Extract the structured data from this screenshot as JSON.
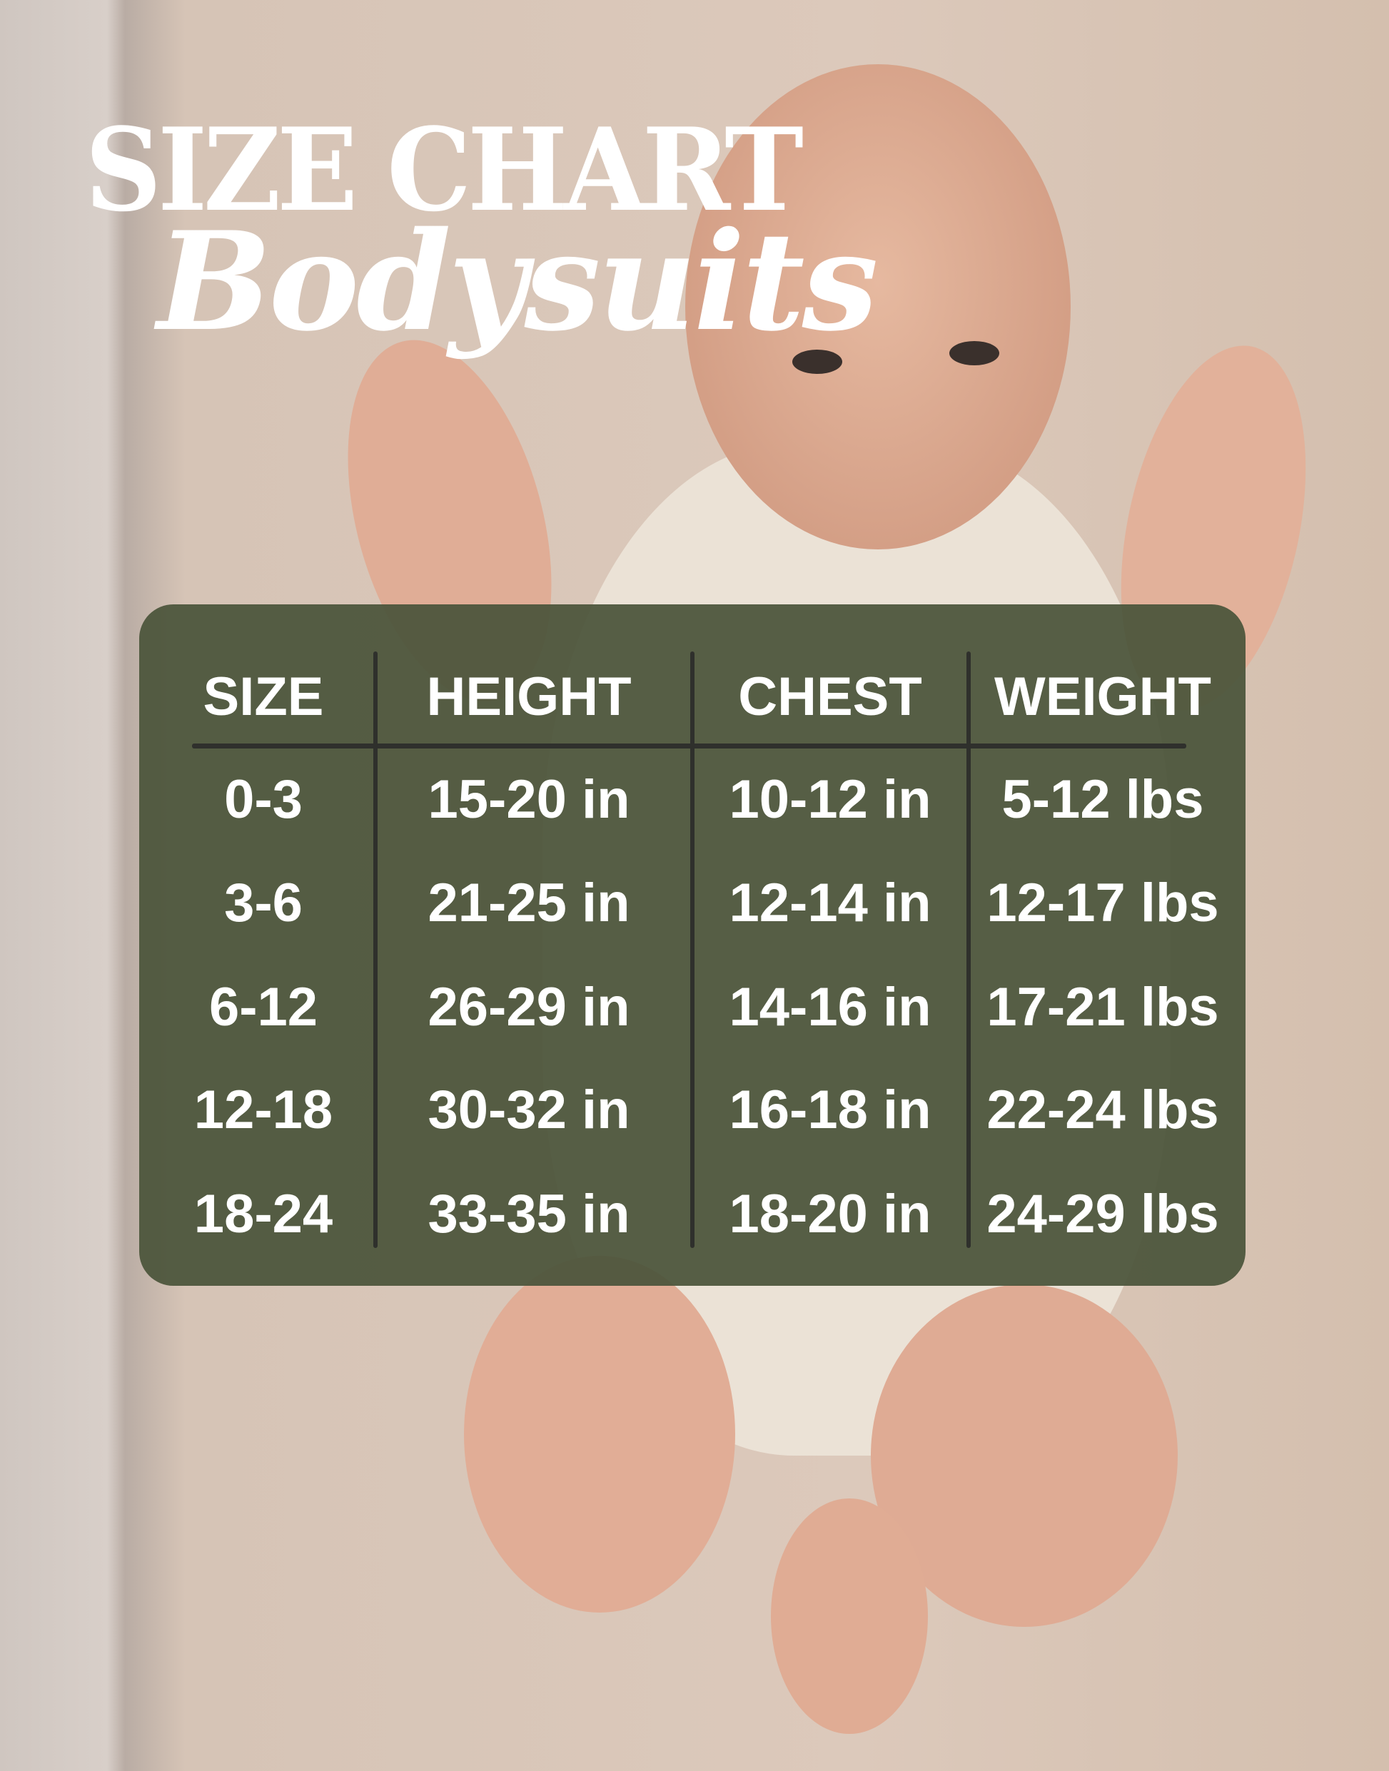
{
  "title": "SIZE CHART",
  "subtitle": "Bodysuits",
  "colors": {
    "panel": "#525a44",
    "divider": "#2f302c",
    "text": "#ffffff"
  },
  "table": {
    "headers": [
      "SIZE",
      "HEIGHT",
      "CHEST",
      "WEIGHT"
    ],
    "rows": [
      [
        "0-3",
        "15-20 in",
        "10-12 in",
        "5-12 lbs"
      ],
      [
        "3-6",
        "21-25 in",
        "12-14 in",
        "12-17 lbs"
      ],
      [
        "6-12",
        "26-29 in",
        "14-16 in",
        "17-21 lbs"
      ],
      [
        "12-18",
        "30-32 in",
        "16-18 in",
        "22-24 lbs"
      ],
      [
        "18-24",
        "33-35 in",
        "18-20 in",
        "24-29 lbs"
      ]
    ]
  }
}
